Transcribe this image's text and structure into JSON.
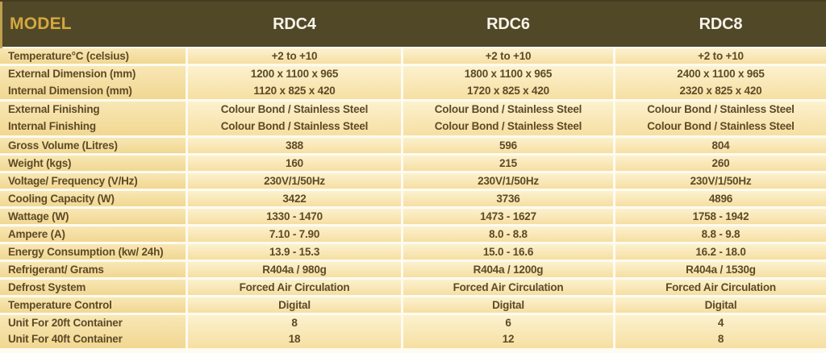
{
  "header": {
    "model_label": "MODEL",
    "columns": [
      "RDC4",
      "RDC6",
      "RDC8"
    ]
  },
  "colors": {
    "header_bg": "#514828",
    "model_gold": "#d4a93f",
    "header_text": "#f7f3e8",
    "label_cell_top": "#f8e7b5",
    "label_cell_bottom": "#f1d791",
    "value_cell_top": "#fcf2cf",
    "value_cell_bottom": "#f6dfa2",
    "body_text": "#5d4a26",
    "separator": "#fefbf0",
    "gold_edge": "#bfa050"
  },
  "rows": [
    {
      "label": [
        "Temperature°C (celsius)"
      ],
      "values": [
        [
          "+2 to +10"
        ],
        [
          "+2 to +10"
        ],
        [
          "+2 to +10"
        ]
      ]
    },
    {
      "label": [
        "External Dimension (mm)",
        "Internal Dimension (mm)"
      ],
      "values": [
        [
          "1200 x 1100 x 965",
          "1120 x 825 x 420"
        ],
        [
          "1800 x 1100 x 965",
          "1720 x 825 x 420"
        ],
        [
          "2400 x 1100 x 965",
          "2320 x 825 x 420"
        ]
      ]
    },
    {
      "label": [
        "External Finishing",
        "Internal Finishing"
      ],
      "values": [
        [
          "Colour Bond / Stainless Steel",
          "Colour Bond / Stainless Steel"
        ],
        [
          "Colour Bond / Stainless Steel",
          "Colour Bond / Stainless Steel"
        ],
        [
          "Colour Bond / Stainless Steel",
          "Colour Bond / Stainless Steel"
        ]
      ]
    },
    {
      "label": [
        "Gross Volume (Litres)"
      ],
      "values": [
        [
          "388"
        ],
        [
          "596"
        ],
        [
          "804"
        ]
      ]
    },
    {
      "label": [
        "Weight (kgs)"
      ],
      "values": [
        [
          "160"
        ],
        [
          "215"
        ],
        [
          "260"
        ]
      ]
    },
    {
      "label": [
        "Voltage/ Frequency (V/Hz)"
      ],
      "values": [
        [
          "230V/1/50Hz"
        ],
        [
          "230V/1/50Hz"
        ],
        [
          "230V/1/50Hz"
        ]
      ]
    },
    {
      "label": [
        "Cooling Capacity (W)"
      ],
      "values": [
        [
          "3422"
        ],
        [
          "3736"
        ],
        [
          "4896"
        ]
      ]
    },
    {
      "label": [
        "Wattage (W)"
      ],
      "values": [
        [
          "1330 - 1470"
        ],
        [
          "1473 - 1627"
        ],
        [
          "1758 - 1942"
        ]
      ]
    },
    {
      "label": [
        "Ampere (A)"
      ],
      "values": [
        [
          "7.10 - 7.90"
        ],
        [
          "8.0 - 8.8"
        ],
        [
          "8.8 - 9.8"
        ]
      ]
    },
    {
      "label": [
        "Energy Consumption (kw/ 24h)"
      ],
      "values": [
        [
          "13.9 - 15.3"
        ],
        [
          "15.0 - 16.6"
        ],
        [
          "16.2 - 18.0"
        ]
      ]
    },
    {
      "label": [
        "Refrigerant/ Grams"
      ],
      "values": [
        [
          "R404a / 980g"
        ],
        [
          "R404a / 1200g"
        ],
        [
          "R404a / 1530g"
        ]
      ]
    },
    {
      "label": [
        "Defrost System"
      ],
      "values": [
        [
          "Forced Air Circulation"
        ],
        [
          "Forced Air Circulation"
        ],
        [
          "Forced Air Circulation"
        ]
      ]
    },
    {
      "label": [
        "Temperature Control"
      ],
      "values": [
        [
          "Digital"
        ],
        [
          "Digital"
        ],
        [
          "Digital"
        ]
      ]
    },
    {
      "label": [
        "Unit For 20ft Container",
        "Unit For 40ft Container"
      ],
      "values": [
        [
          "8",
          "18"
        ],
        [
          "6",
          "12"
        ],
        [
          "4",
          "8"
        ]
      ]
    }
  ]
}
